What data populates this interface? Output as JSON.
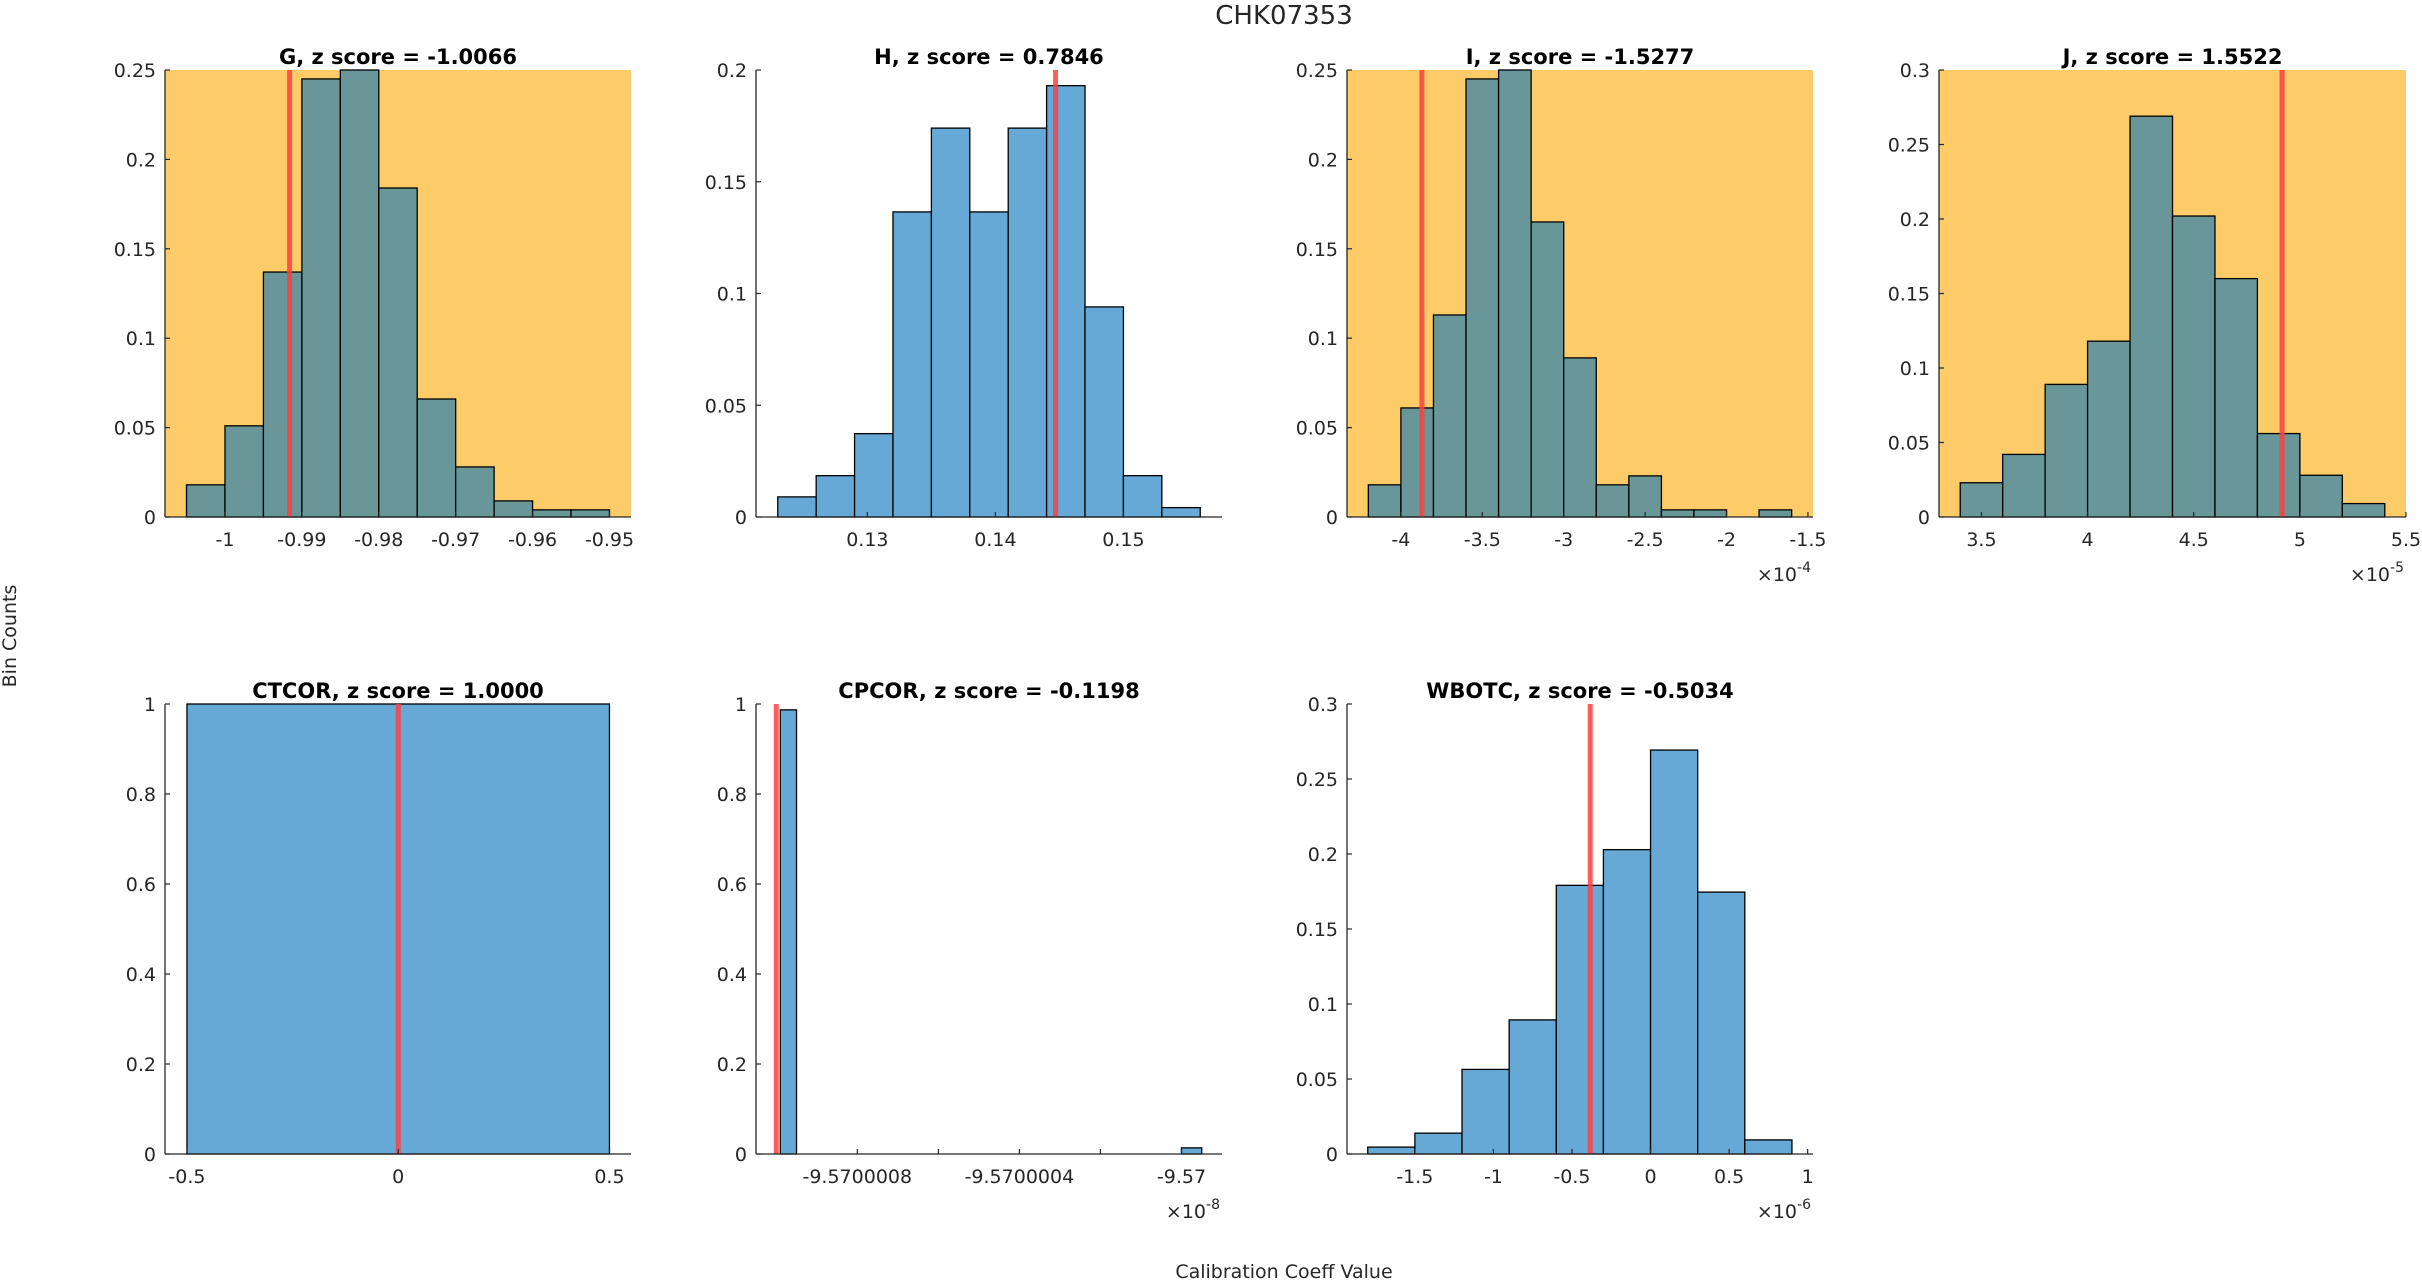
{
  "figure": {
    "suptitle": "CHK07353",
    "xlabel": "Calibration Coeff Value",
    "ylabel": "Bin Counts"
  },
  "colors": {
    "flagged_background": "#fdcb68",
    "normal_background": "#ffffff",
    "bar_blue": "#66a9d6",
    "bar_on_flagged": "#689699",
    "marker_line": "#ff4040",
    "axis": "#262626"
  },
  "chart_data": [
    {
      "type": "bar",
      "name": "G",
      "title": "G, z score = -1.0066",
      "z_score": -1.0066,
      "flagged": true,
      "bin_edges": [
        -1.005,
        -1.0,
        -0.995,
        -0.99,
        -0.985,
        -0.98,
        -0.975,
        -0.97,
        -0.965,
        -0.96,
        -0.955,
        -0.95
      ],
      "values": [
        0.018,
        0.051,
        0.137,
        0.245,
        0.25,
        0.184,
        0.066,
        0.028,
        0.009,
        0.004,
        0.004
      ],
      "marker_x": -0.9916,
      "xlim": [
        -1.0078,
        -0.9472
      ],
      "ylim": [
        0,
        0.25
      ],
      "xticks": [
        -1,
        -0.99,
        -0.98,
        -0.97,
        -0.96,
        -0.95
      ],
      "xtick_labels": [
        "-1",
        "-0.99",
        "-0.98",
        "-0.97",
        "-0.96",
        "-0.95"
      ],
      "yticks": [
        0,
        0.05,
        0.1,
        0.15,
        0.2,
        0.25
      ],
      "ytick_labels": [
        "0",
        "0.05",
        "0.1",
        "0.15",
        "0.2",
        "0.25"
      ],
      "exponent_label": ""
    },
    {
      "type": "bar",
      "name": "H",
      "title": "H, z score = 0.7846",
      "z_score": 0.7846,
      "flagged": false,
      "bin_edges": [
        0.123,
        0.126,
        0.129,
        0.132,
        0.135,
        0.138,
        0.141,
        0.144,
        0.147,
        0.15,
        0.153,
        0.156
      ],
      "values": [
        0.009,
        0.0185,
        0.0373,
        0.1365,
        0.174,
        0.1365,
        0.174,
        0.193,
        0.094,
        0.0185,
        0.0042
      ],
      "marker_x": 0.1447,
      "xlim": [
        0.1213,
        0.1577
      ],
      "ylim": [
        0,
        0.2
      ],
      "xticks": [
        0.13,
        0.14,
        0.15
      ],
      "xtick_labels": [
        "0.13",
        "0.14",
        "0.15"
      ],
      "yticks": [
        0,
        0.05,
        0.1,
        0.15,
        0.2
      ],
      "ytick_labels": [
        "0",
        "0.05",
        "0.1",
        "0.15",
        "0.2"
      ],
      "exponent_label": ""
    },
    {
      "type": "bar",
      "name": "I",
      "title": "I, z score = -1.5277",
      "z_score": -1.5277,
      "flagged": true,
      "bin_edges": [
        -4.2,
        -4.0,
        -3.8,
        -3.6,
        -3.4,
        -3.2,
        -3.0,
        -2.8,
        -2.6,
        -2.4,
        -2.2,
        -2.0,
        -1.8,
        -1.6
      ],
      "values": [
        0.018,
        0.061,
        0.113,
        0.245,
        0.25,
        0.165,
        0.089,
        0.018,
        0.023,
        0.004,
        0.004,
        0,
        0.004
      ],
      "marker_x": -3.871,
      "xlim": [
        -4.331,
        -1.469
      ],
      "ylim": [
        0,
        0.25
      ],
      "xticks": [
        -4,
        -3.5,
        -3,
        -2.5,
        -2,
        -1.5
      ],
      "xtick_labels": [
        "-4",
        "-3.5",
        "-3",
        "-2.5",
        "-2",
        "-1.5"
      ],
      "yticks": [
        0,
        0.05,
        0.1,
        0.15,
        0.2,
        0.25
      ],
      "ytick_labels": [
        "0",
        "0.05",
        "0.1",
        "0.15",
        "0.2",
        "0.25"
      ],
      "exponent_label": "-4"
    },
    {
      "type": "bar",
      "name": "J",
      "title": "J, z score = 1.5522",
      "z_score": 1.5522,
      "flagged": true,
      "bin_edges": [
        3.4,
        3.6,
        3.8,
        4.0,
        4.2,
        4.4,
        4.6,
        4.8,
        5.0,
        5.2,
        5.4
      ],
      "values": [
        0.023,
        0.042,
        0.089,
        0.118,
        0.269,
        0.202,
        0.16,
        0.056,
        0.028,
        0.009
      ],
      "marker_x": 4.916,
      "xlim": [
        3.3,
        5.5
      ],
      "ylim": [
        0,
        0.3
      ],
      "xticks": [
        3.5,
        4,
        4.5,
        5,
        5.5
      ],
      "xtick_labels": [
        "3.5",
        "4",
        "4.5",
        "5",
        "5.5"
      ],
      "yticks": [
        0,
        0.05,
        0.1,
        0.15,
        0.2,
        0.25,
        0.3
      ],
      "ytick_labels": [
        "0",
        "0.05",
        "0.1",
        "0.15",
        "0.2",
        "0.25",
        "0.3"
      ],
      "exponent_label": "-5"
    },
    {
      "type": "bar",
      "name": "CTCOR",
      "title": "CTCOR, z score = 1.0000",
      "z_score": 1.0,
      "flagged": false,
      "bin_edges": [
        -0.5,
        0.5
      ],
      "values": [
        1
      ],
      "marker_x": 0,
      "xlim": [
        -0.552,
        0.551
      ],
      "ylim": [
        0,
        1
      ],
      "xticks": [
        -0.5,
        0,
        0.5
      ],
      "xtick_labels": [
        "-0.5",
        "0",
        "0.5"
      ],
      "yticks": [
        0,
        0.2,
        0.4,
        0.6,
        0.8,
        1
      ],
      "ytick_labels": [
        "0",
        "0.2",
        "0.4",
        "0.6",
        "0.8",
        "1"
      ],
      "exponent_label": ""
    },
    {
      "type": "bar",
      "name": "CPCOR",
      "title": "CPCOR, z score = -0.1198",
      "z_score": -0.1198,
      "flagged": false,
      "bin_edges": [
        -9.57000099,
        -9.57000095
      ],
      "extra_bins": [
        {
          "edges": [
            -9.57,
            -9.56999995
          ],
          "value": 0.0136
        }
      ],
      "values": [
        0.987
      ],
      "marker_x": -9.570001,
      "xlim": [
        -9.57000105,
        -9.5699999
      ],
      "ylim": [
        0,
        1
      ],
      "xticks": [
        -9.5700008,
        -9.5700006,
        -9.5700004,
        -9.5700002,
        -9.57
      ],
      "xtick_labels": [
        "-9.5700008",
        "",
        "-9.5700004",
        "",
        "-9.57"
      ],
      "yticks": [
        0,
        0.2,
        0.4,
        0.6,
        0.8,
        1
      ],
      "ytick_labels": [
        "0",
        "0.2",
        "0.4",
        "0.6",
        "0.8",
        "1"
      ],
      "exponent_label": "-8"
    },
    {
      "type": "bar",
      "name": "WBOTC",
      "title": "WBOTC, z score = -0.5034",
      "z_score": -0.5034,
      "flagged": false,
      "bin_edges": [
        -1.8,
        -1.5,
        -1.2,
        -0.9,
        -0.6,
        -0.3,
        0.0,
        0.3,
        0.6,
        0.9
      ],
      "values": [
        0.0046,
        0.0139,
        0.0564,
        0.0894,
        0.1791,
        0.2029,
        0.2693,
        0.1746,
        0.0094
      ],
      "marker_x": -0.384,
      "xlim": [
        -1.932,
        1.034
      ],
      "ylim": [
        0,
        0.3
      ],
      "xticks": [
        -1.5,
        -1,
        -0.5,
        0,
        0.5,
        1
      ],
      "xtick_labels": [
        "-1.5",
        "-1",
        "-0.5",
        "0",
        "0.5",
        "1"
      ],
      "yticks": [
        0,
        0.05,
        0.1,
        0.15,
        0.2,
        0.25,
        0.3
      ],
      "ytick_labels": [
        "0",
        "0.05",
        "0.1",
        "0.15",
        "0.2",
        "0.25",
        "0.3"
      ],
      "exponent_label": "-6"
    }
  ]
}
